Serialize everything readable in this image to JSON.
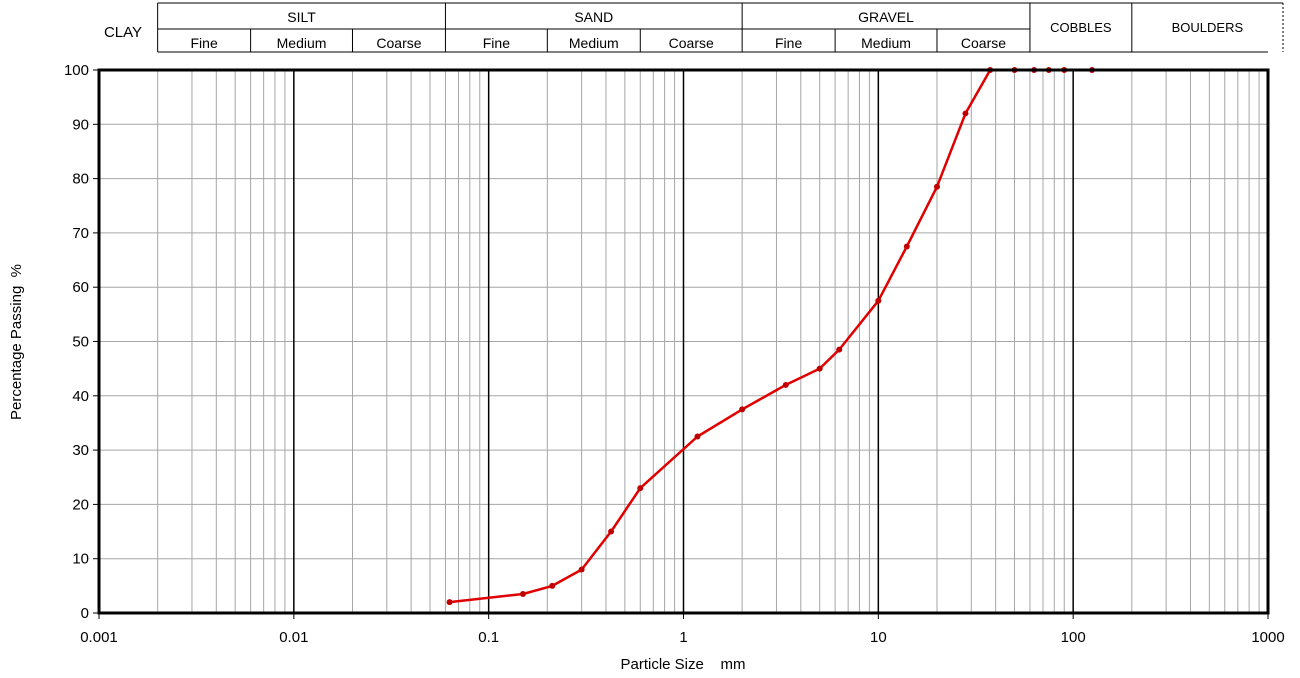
{
  "colors": {
    "series": "#e00000",
    "marker": "#c00000",
    "grid_major": "#000000",
    "grid_minor": "#a6a6a6",
    "frame": "#000000"
  },
  "header": {
    "clay_label": "CLAY",
    "groups": [
      {
        "label": "SILT",
        "from": 0.002,
        "to": 0.06,
        "subs": [
          {
            "label": "Fine",
            "from": 0.002,
            "to": 0.006
          },
          {
            "label": "Medium",
            "from": 0.006,
            "to": 0.02
          },
          {
            "label": "Coarse",
            "from": 0.02,
            "to": 0.06
          }
        ]
      },
      {
        "label": "SAND",
        "from": 0.06,
        "to": 2,
        "subs": [
          {
            "label": "Fine",
            "from": 0.06,
            "to": 0.2
          },
          {
            "label": "Medium",
            "from": 0.2,
            "to": 0.6
          },
          {
            "label": "Coarse",
            "from": 0.6,
            "to": 2
          }
        ]
      },
      {
        "label": "GRAVEL",
        "from": 2,
        "to": 60,
        "subs": [
          {
            "label": "Fine",
            "from": 2,
            "to": 6
          },
          {
            "label": "Medium",
            "from": 6,
            "to": 20
          },
          {
            "label": "Coarse",
            "from": 20,
            "to": 60
          }
        ]
      }
    ],
    "cobbles_label": "COBBLES",
    "cobbles_range": [
      60,
      200
    ],
    "boulders_label": "BOULDERS"
  },
  "chart_data": {
    "type": "line",
    "x_scale": "log",
    "xlabel": "Particle Size    mm",
    "ylabel": "Percentage Passing  %",
    "xlim": [
      0.001,
      1000
    ],
    "ylim": [
      0,
      100
    ],
    "x_ticks": [
      0.001,
      0.01,
      0.1,
      1,
      10,
      100,
      1000
    ],
    "x_tick_labels": [
      "0.001",
      "0.01",
      "0.1",
      "1",
      "10",
      "100",
      "1000"
    ],
    "y_ticks": [
      0,
      10,
      20,
      30,
      40,
      50,
      60,
      70,
      80,
      90,
      100
    ],
    "y_tick_labels": [
      "0",
      "10",
      "20",
      "30",
      "40",
      "50",
      "60",
      "70",
      "80",
      "90",
      "100"
    ],
    "grid": true,
    "series": [
      {
        "x": [
          0.063,
          0.15,
          0.212,
          0.3,
          0.425,
          0.6,
          1.18,
          2,
          3.35,
          5,
          6.3,
          10,
          14,
          20,
          28,
          37.5,
          50,
          63,
          75,
          90,
          125
        ],
        "y": [
          2,
          3.5,
          5,
          8,
          15,
          23,
          32.5,
          37.5,
          42,
          45,
          48.5,
          57.5,
          67.5,
          78.5,
          92,
          100,
          100,
          100,
          100,
          100,
          100
        ]
      }
    ]
  }
}
